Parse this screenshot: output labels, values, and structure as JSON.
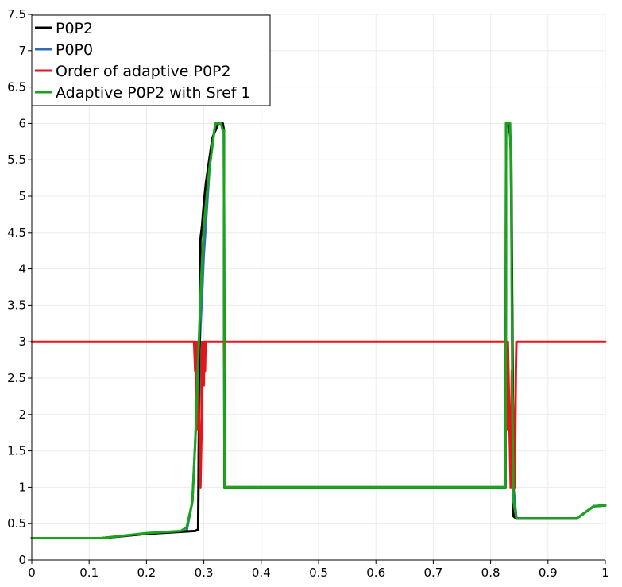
{
  "chart_data": {
    "type": "line",
    "title": "",
    "xlabel": "",
    "ylabel": "",
    "xlim": [
      0,
      1
    ],
    "ylim": [
      0,
      7.5
    ],
    "grid": true,
    "legend_position": "top-left",
    "x_ticks": [
      "0",
      "0.1",
      "0.2",
      "0.3",
      "0.4",
      "0.5",
      "0.6",
      "0.7",
      "0.8",
      "0.9",
      "1"
    ],
    "x_tick_values": [
      0,
      0.1,
      0.2,
      0.3,
      0.4,
      0.5,
      0.6,
      0.7,
      0.8,
      0.9,
      1
    ],
    "y_ticks": [
      "0",
      "0.5",
      "1",
      "1.5",
      "2",
      "2.5",
      "3",
      "3.5",
      "4",
      "4.5",
      "5",
      "5.5",
      "6",
      "6.5",
      "7",
      "7.5"
    ],
    "y_tick_values": [
      0,
      0.5,
      1,
      1.5,
      2,
      2.5,
      3,
      3.5,
      4,
      4.5,
      5,
      5.5,
      6,
      6.5,
      7,
      7.5
    ],
    "series": [
      {
        "name": "P0P2",
        "color": "#000000",
        "x": [
          0,
          0.12,
          0.2,
          0.285,
          0.29,
          0.294,
          0.297,
          0.3,
          0.304,
          0.315,
          0.325,
          0.33,
          0.333,
          0.335,
          0.336,
          0.5,
          0.826,
          0.827,
          0.833,
          0.836,
          0.84,
          0.845,
          0.95,
          0.98,
          1
        ],
        "y": [
          0.3,
          0.3,
          0.36,
          0.4,
          0.42,
          4.4,
          4.6,
          4.9,
          5.2,
          5.8,
          6.0,
          6.0,
          6.0,
          5.9,
          1.0,
          1.0,
          1.0,
          6.0,
          6.0,
          5.5,
          0.6,
          0.57,
          0.57,
          0.74,
          0.75
        ]
      },
      {
        "name": "P0P0",
        "color": "#2f6eb0",
        "x": [
          0,
          0.12,
          0.2,
          0.27,
          0.28,
          0.29,
          0.3,
          0.31,
          0.32,
          0.325,
          0.33,
          0.333,
          0.335,
          0.336,
          0.5,
          0.826,
          0.827,
          0.83,
          0.835,
          0.84,
          0.845,
          0.95,
          0.98,
          1
        ],
        "y": [
          0.3,
          0.3,
          0.36,
          0.4,
          0.8,
          2.5,
          4.2,
          5.4,
          6.0,
          6.0,
          6.0,
          6.0,
          5.9,
          1.0,
          1.0,
          1.0,
          6.0,
          6.0,
          5.8,
          1.0,
          0.57,
          0.57,
          0.74,
          0.75
        ]
      },
      {
        "name": "Order of adaptive P0P2",
        "color": "#e3161c",
        "x": [
          0,
          0.283,
          0.285,
          0.286,
          0.287,
          0.288,
          0.289,
          0.29,
          0.292,
          0.294,
          0.296,
          0.297,
          0.298,
          0.3,
          0.301,
          0.302,
          0.303,
          0.304,
          0.335,
          0.336,
          0.337,
          0.826,
          0.827,
          0.828,
          0.829,
          0.83,
          0.832,
          0.835,
          0.837,
          0.84,
          0.842,
          0.844,
          0.845,
          0.846,
          1
        ],
        "y": [
          3,
          3,
          2.6,
          3,
          2.6,
          1.8,
          3,
          2.6,
          1.8,
          1,
          1.8,
          3,
          2.6,
          2.4,
          3,
          2.6,
          3,
          3,
          3,
          2.6,
          3,
          3,
          2.6,
          3,
          1.8,
          3,
          2.2,
          1,
          2.6,
          1.8,
          1,
          2.6,
          3,
          3,
          3
        ]
      },
      {
        "name": "Adaptive P0P2 with Sref 1",
        "color": "#19a519",
        "x": [
          0,
          0.12,
          0.2,
          0.26,
          0.27,
          0.28,
          0.285,
          0.29,
          0.295,
          0.3,
          0.31,
          0.32,
          0.323,
          0.325,
          0.33,
          0.333,
          0.335,
          0.336,
          0.5,
          0.826,
          0.827,
          0.83,
          0.834,
          0.836,
          0.838,
          0.84,
          0.845,
          0.95,
          0.98,
          1
        ],
        "y": [
          0.3,
          0.3,
          0.37,
          0.4,
          0.45,
          0.8,
          1.6,
          2.7,
          3.8,
          4.6,
          5.4,
          6.0,
          6.0,
          6.0,
          6.0,
          5.9,
          5.9,
          1.0,
          1.0,
          1.0,
          6.0,
          6.0,
          6.0,
          5.0,
          2.0,
          0.8,
          0.57,
          0.57,
          0.74,
          0.75
        ]
      }
    ]
  }
}
